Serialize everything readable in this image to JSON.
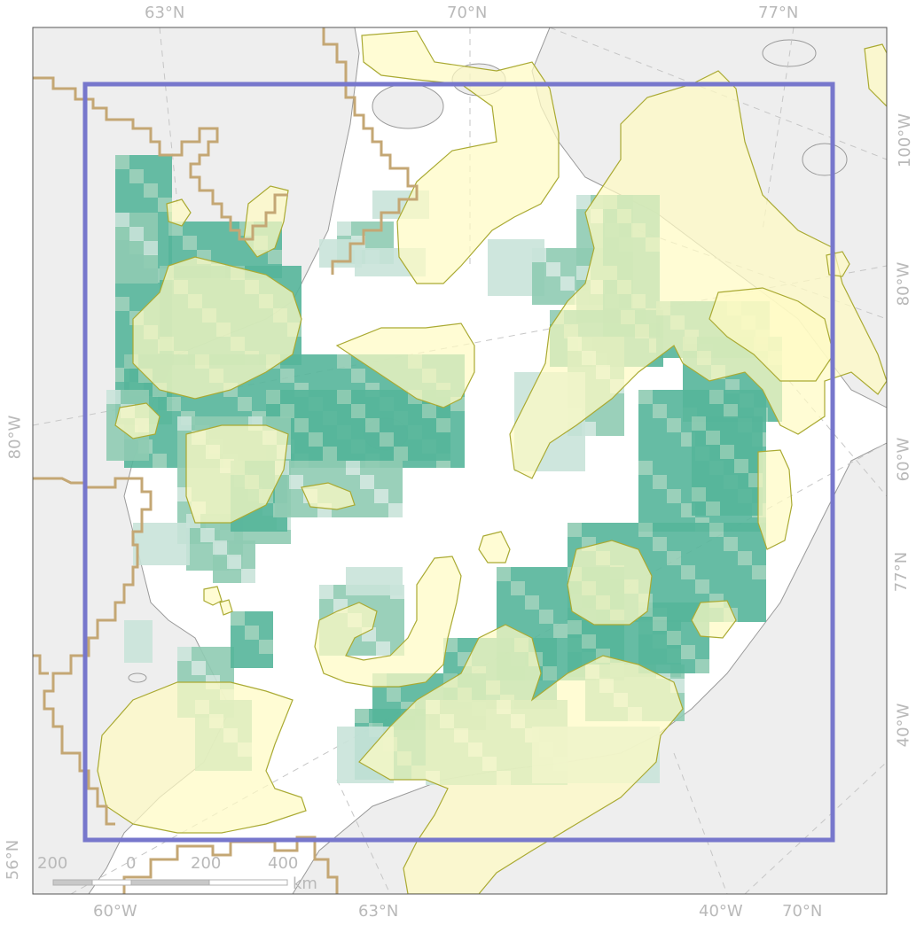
{
  "graticule_labels": {
    "top": [
      "63°N",
      "70°N",
      "77°N"
    ],
    "bottom": [
      "60°W",
      "63°N",
      "40°W",
      "70°N"
    ],
    "left": [
      "80°W",
      "56°N"
    ],
    "right": [
      "100°W",
      "80°W",
      "60°W",
      "77°N",
      "40°W"
    ]
  },
  "scale_bar": {
    "ticks": [
      "200",
      "0",
      "200",
      "400"
    ],
    "unit": "km"
  },
  "colors": {
    "land": "#eeeeee",
    "coastline": "#9a9a9a",
    "ocean": "#ffffff",
    "boundary": "#c4a774",
    "study_area": "#7777cc",
    "range_polygon_fill": "#fffbc4",
    "range_polygon_stroke": "#aaaa33",
    "density_low": "#c9e3d9",
    "density_mid": "#8fcbb3",
    "density_high": "#55b59a",
    "overlap": "#77c27c",
    "graticule": "#c6c6c6",
    "label": "#b9b9b9"
  }
}
